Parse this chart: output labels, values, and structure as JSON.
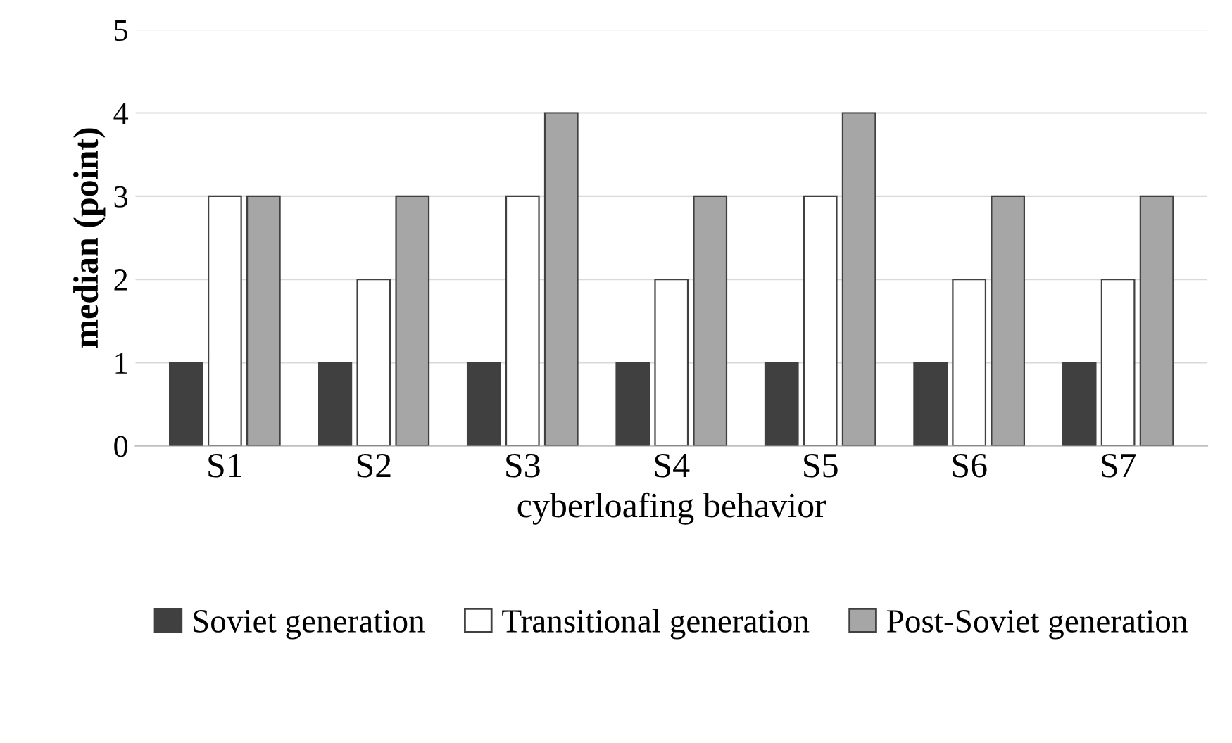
{
  "chart_data": {
    "type": "bar",
    "xlabel": "cyberloafing behavior",
    "ylabel": "median (point)",
    "categories": [
      "S1",
      "S2",
      "S3",
      "S4",
      "S5",
      "S6",
      "S7"
    ],
    "series": [
      {
        "name": "Soviet generation",
        "color": "#404040",
        "values": [
          1,
          1,
          1,
          1,
          1,
          1,
          1
        ]
      },
      {
        "name": "Transitional generation",
        "color": "#ffffff",
        "values": [
          3,
          2,
          3,
          2,
          3,
          2,
          2
        ]
      },
      {
        "name": "Post-Soviet generation",
        "color": "#a6a6a6",
        "values": [
          3,
          3,
          4,
          3,
          4,
          3,
          3
        ]
      }
    ],
    "ylim": [
      0,
      5
    ],
    "yticks": [
      0,
      1,
      2,
      3,
      4,
      5
    ],
    "grid": "y",
    "legend": "bottom"
  }
}
